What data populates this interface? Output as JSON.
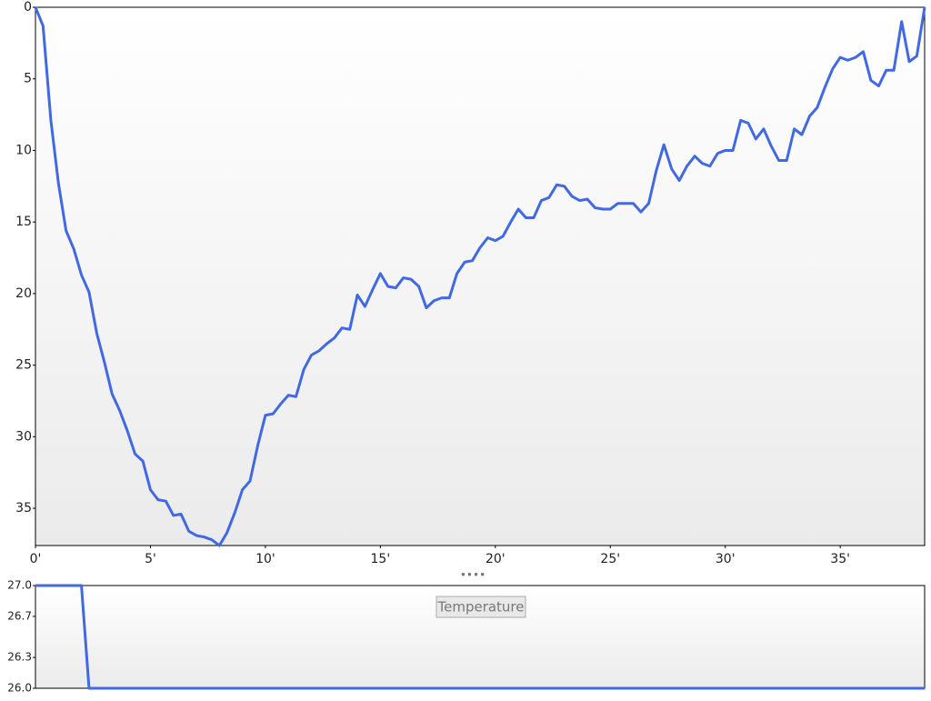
{
  "chart_data": [
    {
      "type": "line",
      "reversed": true,
      "color": "#4169e1",
      "x": [
        0,
        0.33,
        0.67,
        1,
        1.33,
        1.67,
        2,
        2.33,
        2.67,
        3,
        3.33,
        3.67,
        4,
        4.33,
        4.67,
        5,
        5.33,
        5.67,
        6,
        6.33,
        6.67,
        7,
        7.33,
        7.67,
        8,
        8.33,
        8.67,
        9,
        9.33,
        9.67,
        10,
        10.33,
        10.67,
        11,
        11.33,
        11.67,
        12,
        12.33,
        12.67,
        13,
        13.33,
        13.67,
        14,
        14.33,
        14.67,
        15,
        15.33,
        15.67,
        16,
        16.33,
        16.67,
        17,
        17.33,
        17.67,
        18,
        18.33,
        18.67,
        19,
        19.33,
        19.67,
        20,
        20.33,
        20.67,
        21,
        21.33,
        21.67,
        22,
        22.33,
        22.67,
        23,
        23.33,
        23.67,
        24,
        24.33,
        24.67,
        25,
        25.33,
        25.67,
        26,
        26.33,
        26.67,
        27,
        27.33,
        27.67,
        28,
        28.33,
        28.67,
        29,
        29.33,
        29.67,
        30,
        30.33,
        30.67,
        31,
        31.33,
        31.67,
        32,
        32.33,
        32.67,
        33,
        33.33,
        33.67,
        34,
        34.33,
        34.67,
        35,
        35.33,
        35.67,
        36,
        36.33,
        36.67,
        37,
        37.33,
        37.67,
        38,
        38.33,
        38.67
      ],
      "values": [
        0,
        1.3,
        7.9,
        12.3,
        15.6,
        16.9,
        18.7,
        19.9,
        22.8,
        24.8,
        27.0,
        28.2,
        29.6,
        31.2,
        31.7,
        33.7,
        34.4,
        34.5,
        35.5,
        35.4,
        36.6,
        36.9,
        37.0,
        37.2,
        37.6,
        36.7,
        35.3,
        33.7,
        33.1,
        30.6,
        28.5,
        28.4,
        27.7,
        27.1,
        27.2,
        25.3,
        24.3,
        24.0,
        23.5,
        23.1,
        22.4,
        22.5,
        20.1,
        20.9,
        19.7,
        18.6,
        19.5,
        19.6,
        18.9,
        19.0,
        19.5,
        21.0,
        20.5,
        20.3,
        20.3,
        18.6,
        17.8,
        17.7,
        16.8,
        16.1,
        16.3,
        16.0,
        15.0,
        14.1,
        14.7,
        14.7,
        13.5,
        13.3,
        12.4,
        12.5,
        13.2,
        13.5,
        13.4,
        14.0,
        14.1,
        14.1,
        13.7,
        13.7,
        13.7,
        14.3,
        13.7,
        11.4,
        9.6,
        11.3,
        12.1,
        11.1,
        10.4,
        10.9,
        11.1,
        10.2,
        10.0,
        10.0,
        7.9,
        8.1,
        9.2,
        8.5,
        9.7,
        10.7,
        10.7,
        8.5,
        8.9,
        7.6,
        7.0,
        5.6,
        4.3,
        3.5,
        3.7,
        3.5,
        3.1,
        5.1,
        5.5,
        4.4,
        4.4,
        1.0,
        3.8,
        3.4,
        0
      ],
      "xlim": [
        0,
        38.67
      ],
      "xticks": [
        {
          "value": 0,
          "label": "0'"
        },
        {
          "value": 5,
          "label": "5'"
        },
        {
          "value": 10,
          "label": "10'"
        },
        {
          "value": 15,
          "label": "15'"
        },
        {
          "value": 20,
          "label": "20'"
        },
        {
          "value": 25,
          "label": "25'"
        },
        {
          "value": 30,
          "label": "30'"
        },
        {
          "value": 35,
          "label": "35'"
        }
      ],
      "ylim": [
        0,
        37.6
      ],
      "yticks": [
        0,
        5,
        10,
        15,
        20,
        25,
        30,
        35
      ]
    },
    {
      "type": "line",
      "x": [
        0,
        2,
        2.33,
        38.67
      ],
      "series": [
        {
          "name": "Temperature",
          "color": "#4169e1",
          "values": [
            27,
            27,
            26,
            26
          ]
        }
      ],
      "xlim": [
        0,
        38.67
      ],
      "ylim": [
        26,
        27
      ],
      "yticks": [
        {
          "value": 27,
          "label": "27.0"
        },
        26.7,
        26.3,
        {
          "value": 26,
          "label": "26.0"
        }
      ]
    }
  ]
}
